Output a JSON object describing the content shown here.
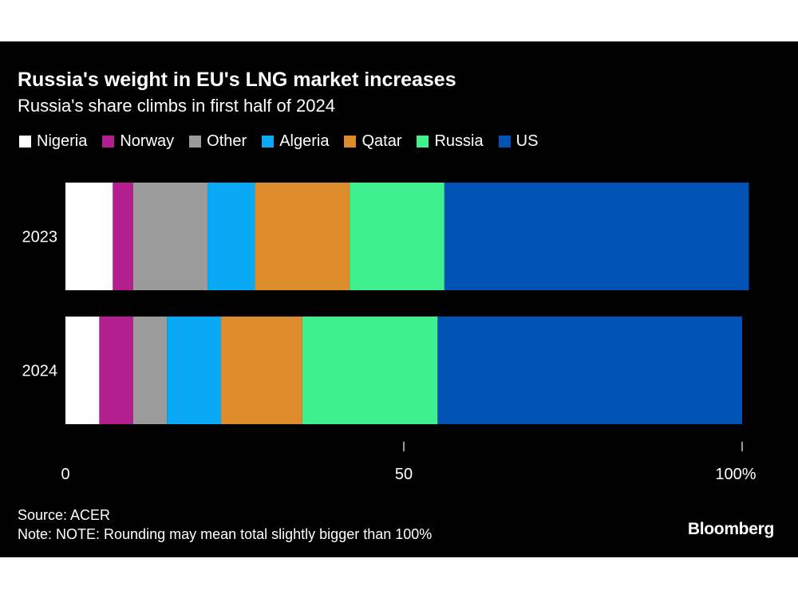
{
  "title": "Russia's weight in EU's LNG market increases",
  "subtitle": "Russia's share climbs in first half of 2024",
  "source": "Source: ACER",
  "note": "Note: NOTE: Rounding may mean total slightly bigger than 100%",
  "brand": "Bloomberg",
  "colors": {
    "background": "#000000",
    "text": "#ffffff",
    "axis": "#cccccc"
  },
  "legend": [
    {
      "name": "Nigeria",
      "color": "#ffffff"
    },
    {
      "name": "Norway",
      "color": "#b31f8f"
    },
    {
      "name": "Other",
      "color": "#9b9b9b"
    },
    {
      "name": "Algeria",
      "color": "#0aa9f5"
    },
    {
      "name": "Qatar",
      "color": "#dc8c2a"
    },
    {
      "name": "Russia",
      "color": "#3ff08f"
    },
    {
      "name": "US",
      "color": "#0052b4"
    }
  ],
  "chart_data": {
    "type": "bar",
    "orientation": "horizontal",
    "stacked": true,
    "categories": [
      "2023",
      "2024"
    ],
    "series": [
      {
        "name": "Nigeria",
        "values": [
          7,
          5
        ]
      },
      {
        "name": "Norway",
        "values": [
          3,
          5
        ]
      },
      {
        "name": "Other",
        "values": [
          11,
          5
        ]
      },
      {
        "name": "Algeria",
        "values": [
          7,
          8
        ]
      },
      {
        "name": "Qatar",
        "values": [
          14,
          12
        ]
      },
      {
        "name": "Russia",
        "values": [
          14,
          20
        ]
      },
      {
        "name": "US",
        "values": [
          45,
          45
        ]
      }
    ],
    "xlim": [
      0,
      100
    ],
    "x_ticks": [
      {
        "value": 0,
        "label": "0"
      },
      {
        "value": 50,
        "label": "50"
      },
      {
        "value": 100,
        "label": "100%"
      }
    ],
    "grid": false,
    "legend_position": "top-left"
  }
}
